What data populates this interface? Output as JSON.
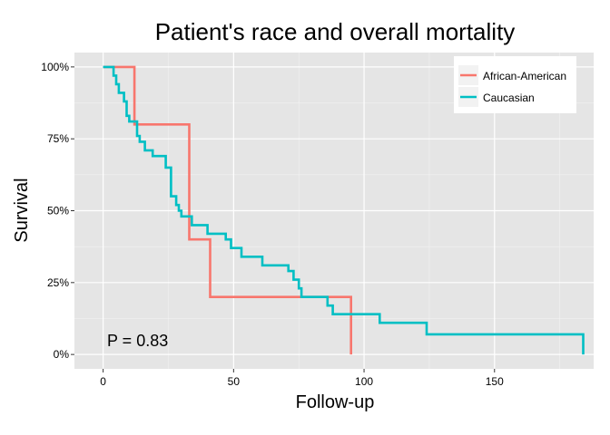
{
  "chart_data": {
    "type": "line",
    "title": "Patient's race and overall mortality",
    "xlabel": "Follow-up",
    "ylabel": "Survival",
    "xlim": [
      -11,
      188
    ],
    "ylim": [
      -0.05,
      1.05
    ],
    "x_ticks": [
      0,
      50,
      100,
      150
    ],
    "y_ticks": [
      0,
      0.25,
      0.5,
      0.75,
      1.0
    ],
    "y_tick_labels": [
      "0%",
      "25%",
      "50%",
      "75%",
      "100%"
    ],
    "grid": true,
    "legend_position": "top-right",
    "annotation": "P = 0.83",
    "series": [
      {
        "name": "African-American",
        "color": "#F8766D",
        "step": true,
        "points": [
          [
            0,
            1.0
          ],
          [
            12,
            0.8
          ],
          [
            33,
            0.4
          ],
          [
            41,
            0.2
          ],
          [
            95,
            0.0
          ]
        ]
      },
      {
        "name": "Caucasian",
        "color": "#00BFC4",
        "step": true,
        "points": [
          [
            0,
            1.0
          ],
          [
            4,
            0.97
          ],
          [
            5,
            0.94
          ],
          [
            6,
            0.91
          ],
          [
            8,
            0.88
          ],
          [
            9,
            0.83
          ],
          [
            10,
            0.81
          ],
          [
            13,
            0.76
          ],
          [
            14,
            0.74
          ],
          [
            16,
            0.71
          ],
          [
            19,
            0.69
          ],
          [
            24,
            0.65
          ],
          [
            26,
            0.55
          ],
          [
            28,
            0.52
          ],
          [
            29,
            0.5
          ],
          [
            30,
            0.48
          ],
          [
            34,
            0.45
          ],
          [
            40,
            0.42
          ],
          [
            47,
            0.4
          ],
          [
            49,
            0.37
          ],
          [
            53,
            0.34
          ],
          [
            61,
            0.31
          ],
          [
            71,
            0.29
          ],
          [
            73,
            0.26
          ],
          [
            75,
            0.23
          ],
          [
            76,
            0.2
          ],
          [
            86,
            0.17
          ],
          [
            88,
            0.14
          ],
          [
            106,
            0.11
          ],
          [
            124,
            0.07
          ],
          [
            184,
            0.0
          ]
        ]
      }
    ]
  }
}
